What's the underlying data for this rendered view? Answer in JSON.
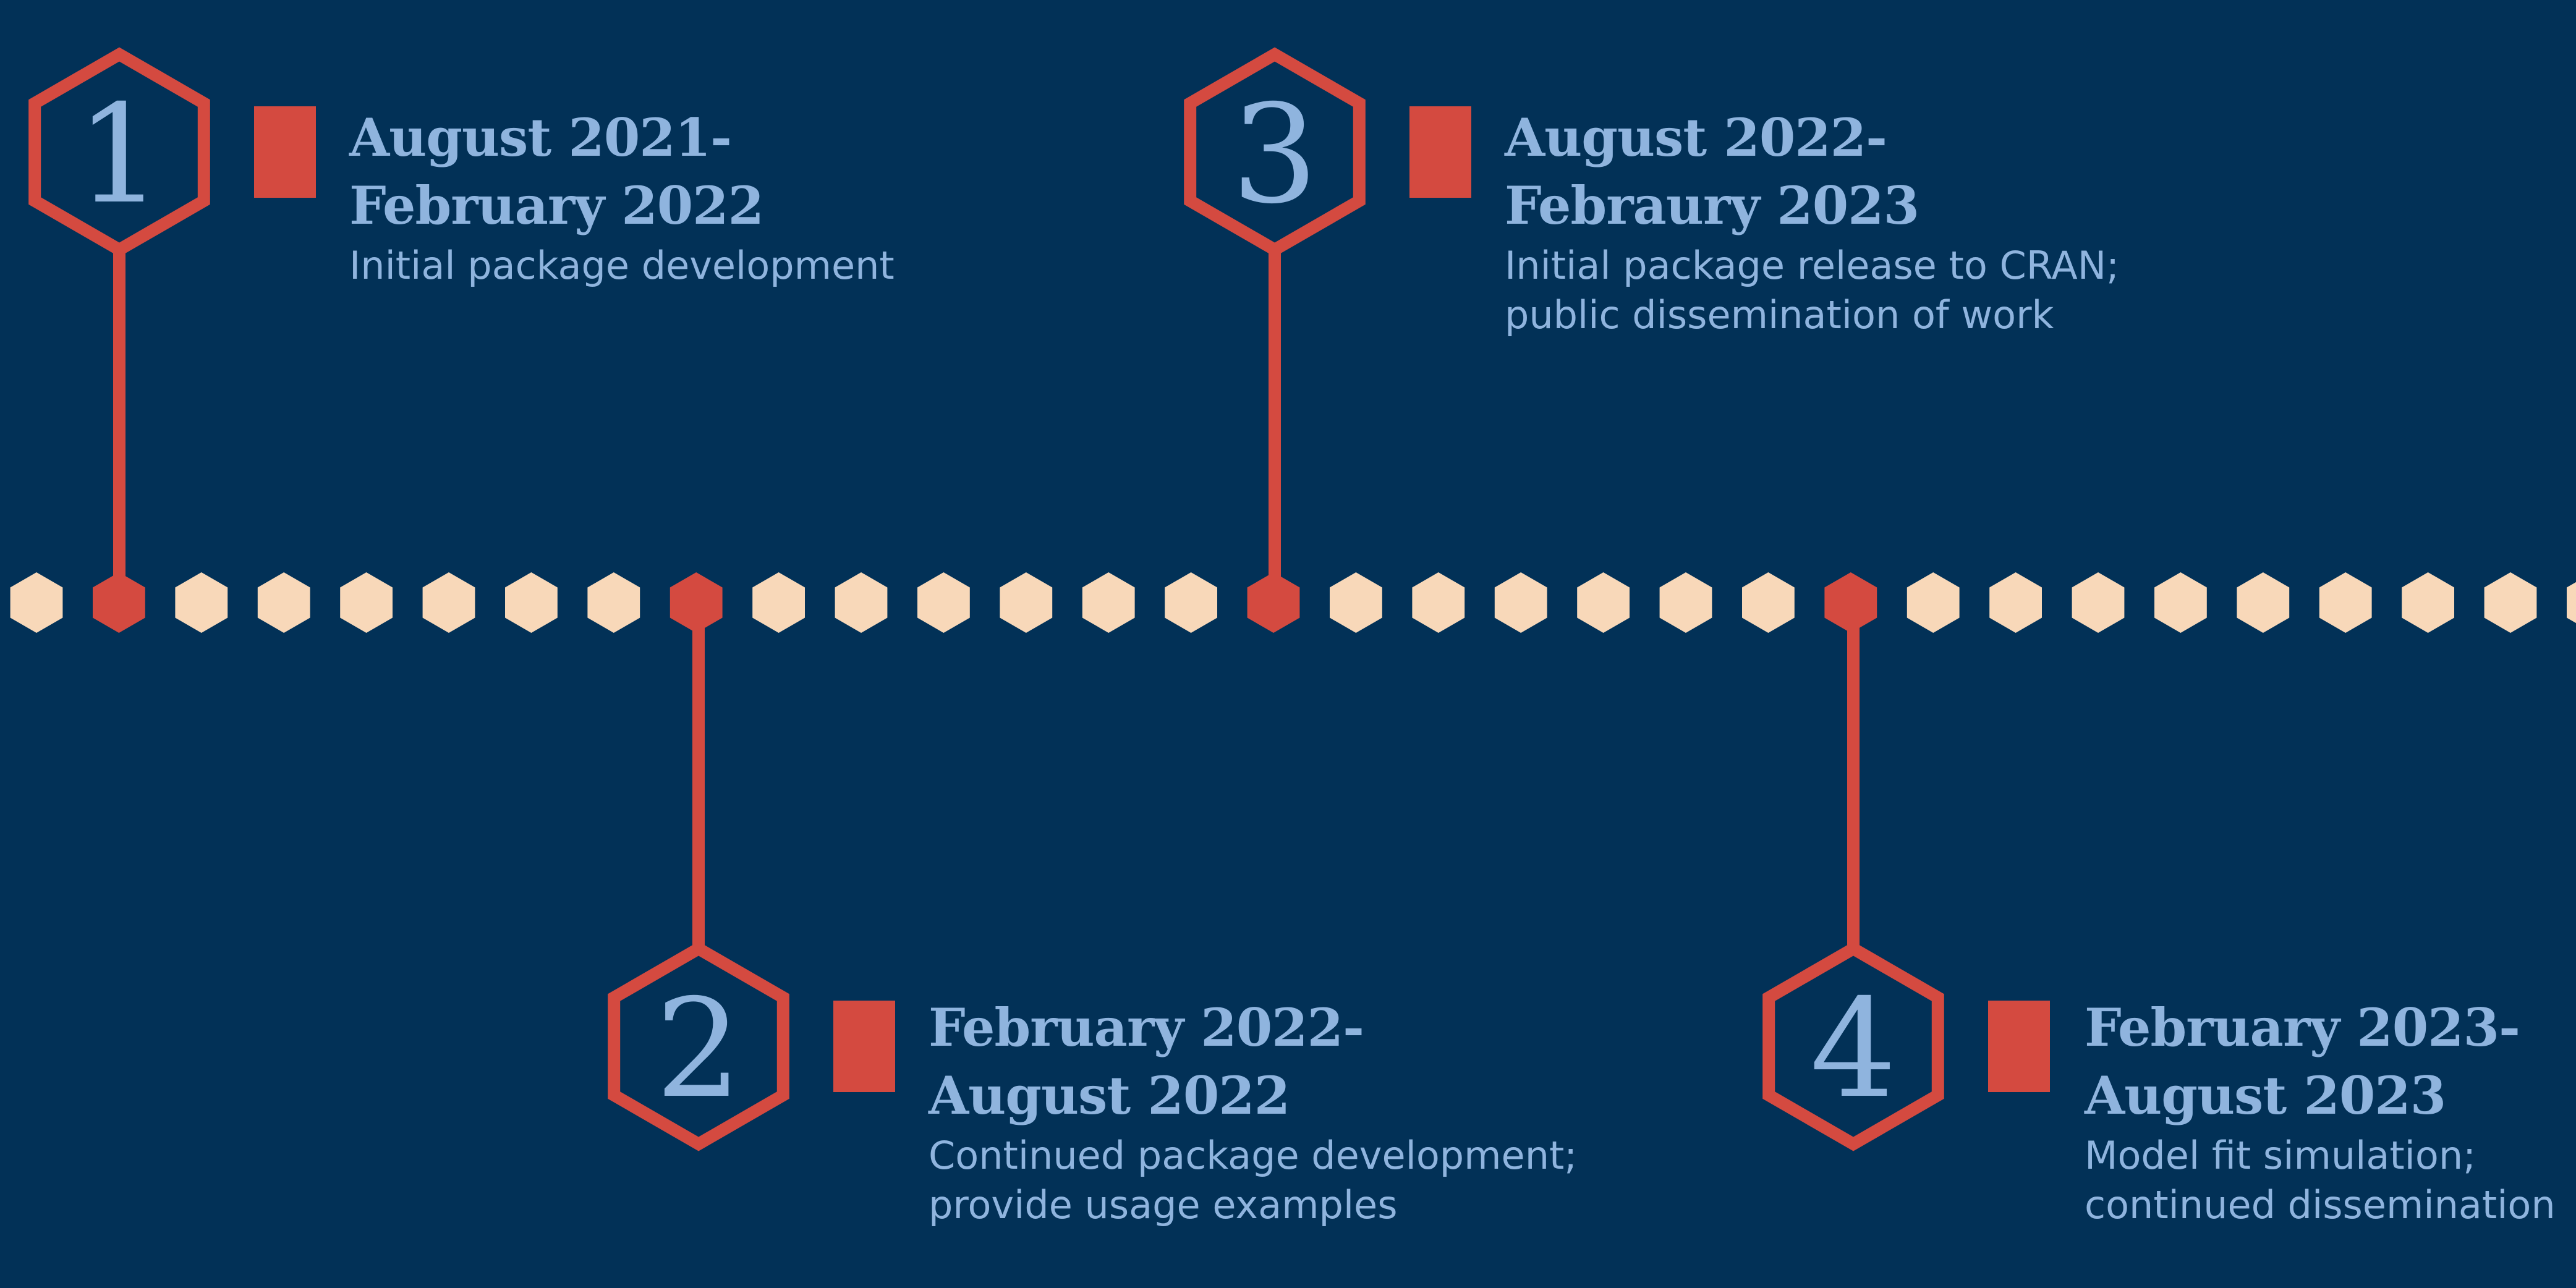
{
  "timeline": {
    "colors": {
      "background": "#023157",
      "accent": "#d44a40",
      "dot": "#f8d8b9",
      "text": "#8fb4de"
    },
    "milestones": [
      {
        "number": "1",
        "title_line1": "August 2021-",
        "title_line2": "February 2022",
        "desc_line1": "Initial package development",
        "desc_line2": ""
      },
      {
        "number": "2",
        "title_line1": "February 2022-",
        "title_line2": "August 2022",
        "desc_line1": "Continued package development;",
        "desc_line2": "provide usage examples"
      },
      {
        "number": "3",
        "title_line1": "August 2022-",
        "title_line2": "Febraury 2023",
        "desc_line1": "Initial package release to CRAN;",
        "desc_line2": "public dissemination of work"
      },
      {
        "number": "4",
        "title_line1": "February 2023-",
        "title_line2": "August 2023",
        "desc_line1": "Model fit simulation;",
        "desc_line2": "continued dissemination"
      }
    ]
  }
}
